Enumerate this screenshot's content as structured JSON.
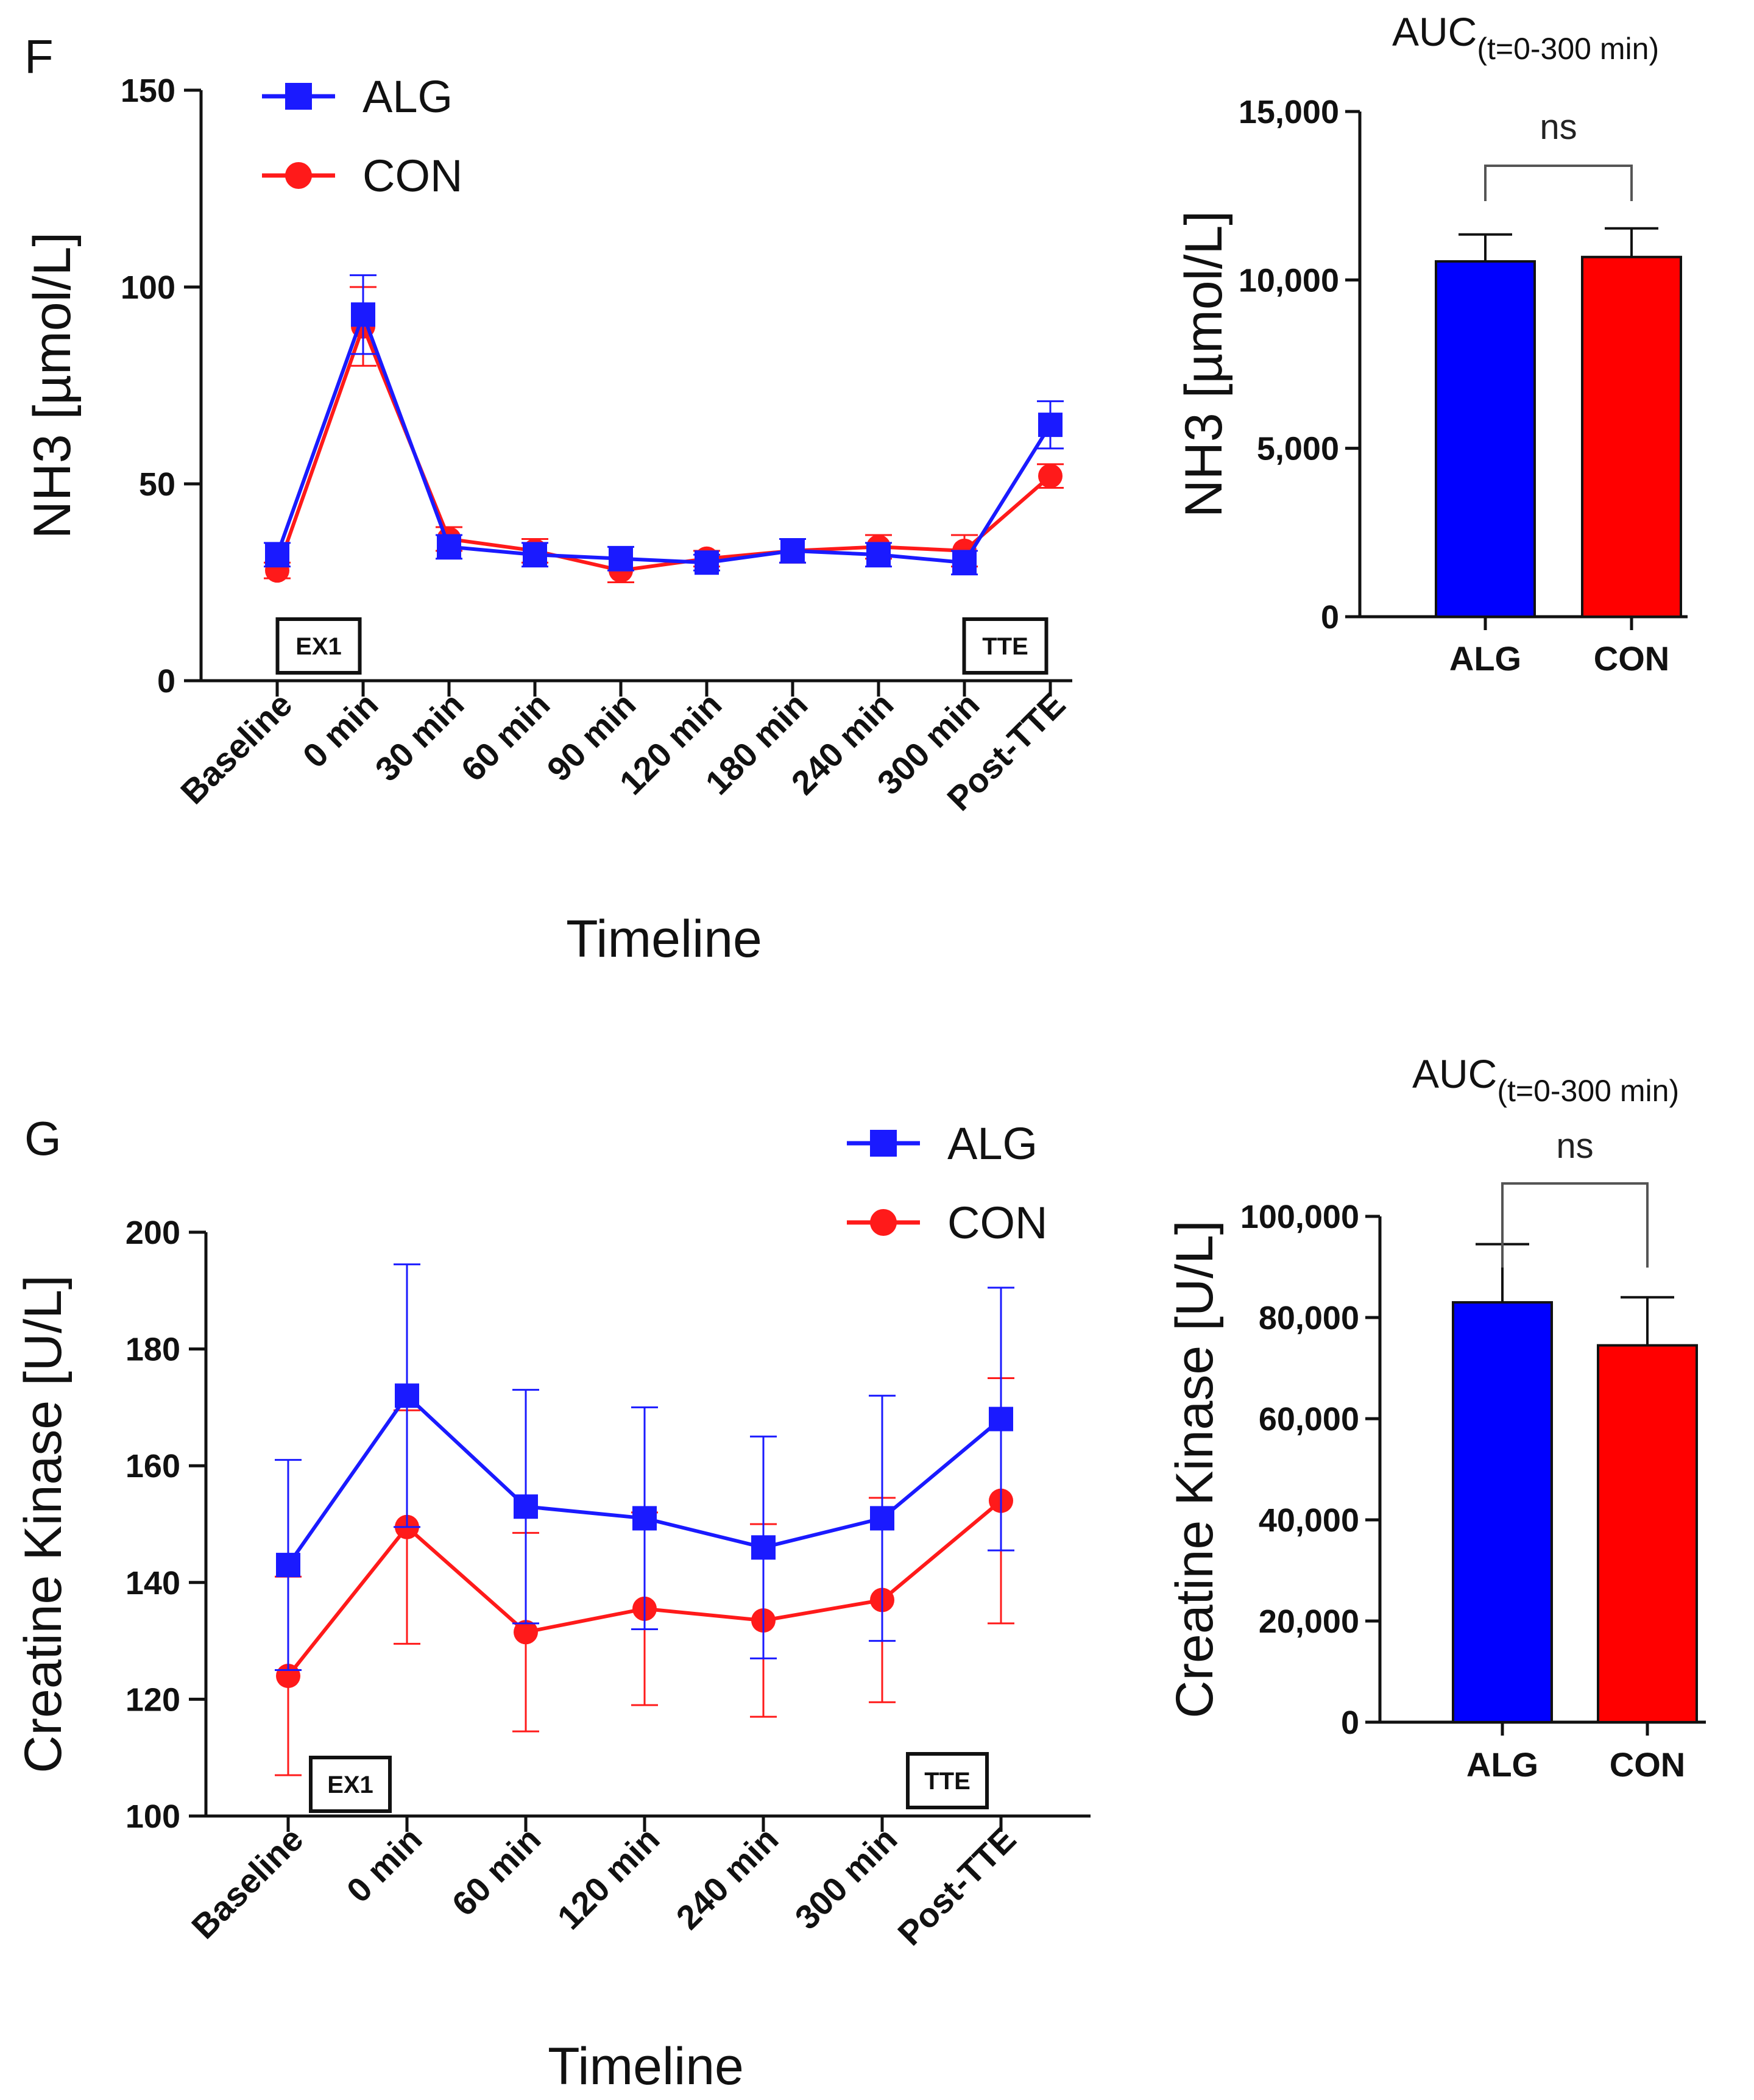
{
  "chart_data": [
    {
      "id": "F-line",
      "type": "line",
      "panel_label": "F",
      "categories": [
        "Baseline",
        "0 min",
        "30 min",
        "60 min",
        "90 min",
        "120 min",
        "180 min",
        "240 min",
        "300 min",
        "Post-TTE"
      ],
      "ylabel": "NH3 [µmol/L]",
      "xlabel": "Timeline",
      "ylim": [
        0,
        150
      ],
      "yticks": [
        0,
        50,
        100,
        150
      ],
      "ytick_labels": [
        "0",
        "50",
        "100",
        "150"
      ],
      "legend": [
        "ALG",
        "CON"
      ],
      "legend_position": "top-left",
      "annotations": [
        {
          "text": "EX1",
          "at": "Baseline"
        },
        {
          "text": "TTE",
          "at": "Post-TTE"
        }
      ],
      "series": [
        {
          "name": "CON",
          "color": "#ff1a1a",
          "marker": "circle",
          "values": [
            28,
            90,
            36,
            33,
            28,
            31,
            33,
            34,
            33,
            52
          ],
          "errors": [
            2,
            10,
            3,
            3,
            3,
            2,
            3,
            3,
            4,
            3
          ]
        },
        {
          "name": "ALG",
          "color": "#1a1aff",
          "marker": "square",
          "values": [
            32,
            93,
            34,
            32,
            31,
            30,
            33,
            32,
            30,
            65
          ],
          "errors": [
            3,
            10,
            3,
            3,
            3,
            2,
            3,
            3,
            3,
            6
          ]
        }
      ]
    },
    {
      "id": "F-bar",
      "type": "bar",
      "title": "AUC",
      "title_subscript": "(t=0-300 min)",
      "categories": [
        "ALG",
        "CON"
      ],
      "values": [
        10550,
        10680
      ],
      "errors": [
        800,
        850
      ],
      "colors": [
        "#0000ff",
        "#ff0000"
      ],
      "ylabel": "NH3 [µmol/L]",
      "ylim": [
        0,
        15000
      ],
      "yticks": [
        0,
        5000,
        10000,
        15000
      ],
      "ytick_labels": [
        "0",
        "5,000",
        "10,000",
        "15,000"
      ],
      "significance": "ns"
    },
    {
      "id": "G-line",
      "type": "line",
      "panel_label": "G",
      "categories": [
        "Baseline",
        "0 min",
        "60 min",
        "120 min",
        "240 min",
        "300 min",
        "Post-TTE"
      ],
      "ylabel": "Creatine Kinase [U/L]",
      "xlabel": "Timeline",
      "ylim": [
        100,
        200
      ],
      "yticks": [
        100,
        120,
        140,
        160,
        180,
        200
      ],
      "ytick_labels": [
        "100",
        "120",
        "140",
        "160",
        "180",
        "200"
      ],
      "legend": [
        "ALG",
        "CON"
      ],
      "legend_position": "top-right",
      "annotations": [
        {
          "text": "EX1",
          "at": "Baseline"
        },
        {
          "text": "TTE",
          "at": "Post-TTE"
        }
      ],
      "series": [
        {
          "name": "CON",
          "color": "#ff1a1a",
          "marker": "circle",
          "values": [
            124,
            149.5,
            131.5,
            135.5,
            133.5,
            137,
            154
          ],
          "errors": [
            17,
            20,
            17,
            16.5,
            16.5,
            17.5,
            21
          ]
        },
        {
          "name": "ALG",
          "color": "#1a1aff",
          "marker": "square",
          "values": [
            143,
            172,
            153,
            151,
            146,
            151,
            168
          ],
          "errors": [
            18,
            22.5,
            20,
            19,
            19,
            21,
            22.5
          ]
        }
      ]
    },
    {
      "id": "G-bar",
      "type": "bar",
      "title": "AUC",
      "title_subscript": "(t=0-300 min)",
      "categories": [
        "ALG",
        "CON"
      ],
      "values": [
        83000,
        74500
      ],
      "errors": [
        11500,
        9500
      ],
      "colors": [
        "#0000ff",
        "#ff0000"
      ],
      "ylabel": "Creatine Kinase [U/L]",
      "ylim": [
        0,
        100000
      ],
      "yticks": [
        0,
        20000,
        40000,
        60000,
        80000,
        100000
      ],
      "ytick_labels": [
        "0",
        "20,000",
        "40,000",
        "60,000",
        "80,000",
        "100,000"
      ],
      "significance": "ns"
    }
  ]
}
